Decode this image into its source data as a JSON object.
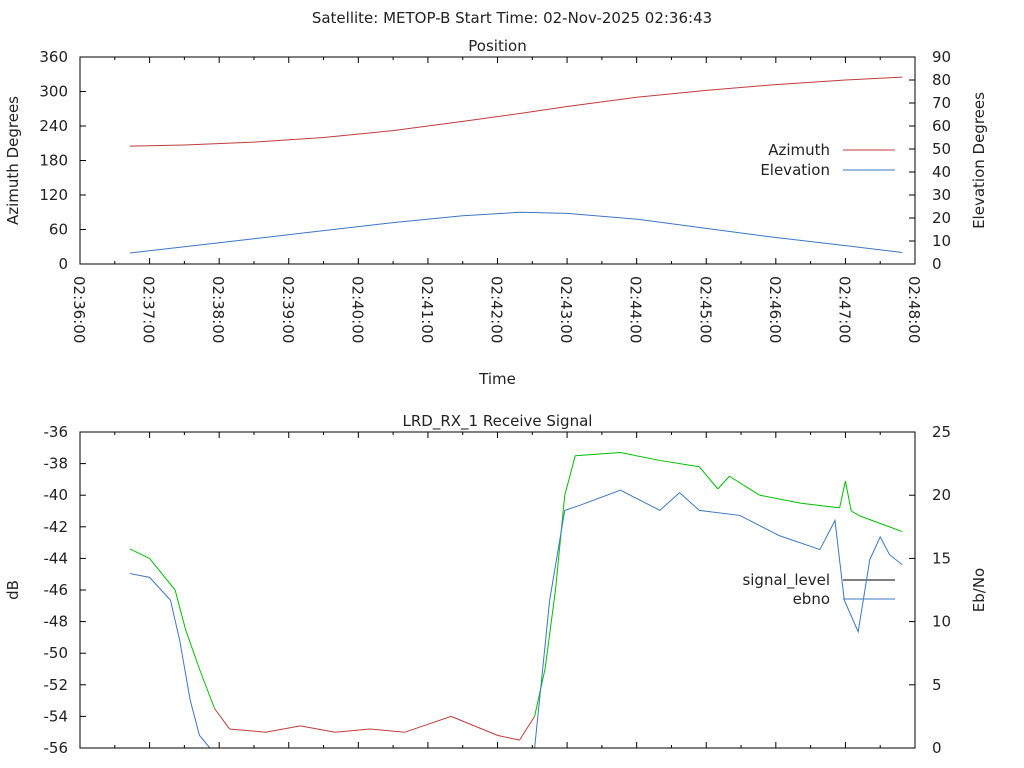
{
  "title": "Satellite: METOP-B    Start Time: 02-Nov-2025 02:36:43",
  "colors": {
    "azimuth": "#c03c3c",
    "elevation": "#3c78c0",
    "signal_good": "#00c000",
    "signal_bad": "#c03c3c",
    "ebno": "#3c78c0",
    "legend_signal": "#000000"
  },
  "chart_data": [
    {
      "type": "line",
      "title": "Position",
      "xlabel": "Time",
      "ylabel": "Azimuth Degrees",
      "y2label": "Elevation Degrees",
      "xlim": [
        "02:36:00",
        "02:48:00"
      ],
      "ylim": [
        0,
        360
      ],
      "y2lim": [
        0,
        90
      ],
      "xticks": [
        "02:36:00",
        "02:37:00",
        "02:38:00",
        "02:39:00",
        "02:40:00",
        "02:41:00",
        "02:42:00",
        "02:43:00",
        "02:44:00",
        "02:45:00",
        "02:46:00",
        "02:47:00",
        "02:48:00"
      ],
      "yticks": [
        "0",
        "60",
        "120",
        "180",
        "240",
        "300",
        "360"
      ],
      "y2ticks": [
        "0",
        "10",
        "20",
        "30",
        "40",
        "50",
        "60",
        "70",
        "80",
        "90"
      ],
      "legend": "right",
      "series": [
        {
          "name": "Azimuth",
          "axis": "y",
          "x": [
            "02:36:43",
            "02:37:30",
            "02:38:30",
            "02:39:30",
            "02:40:30",
            "02:41:30",
            "02:42:20",
            "02:43:00",
            "02:44:00",
            "02:45:00",
            "02:46:00",
            "02:47:00",
            "02:47:49"
          ],
          "y": [
            205,
            207,
            212,
            220,
            232,
            248,
            262,
            274,
            290,
            302,
            312,
            320,
            325
          ]
        },
        {
          "name": "Elevation",
          "axis": "y2",
          "x": [
            "02:36:43",
            "02:37:30",
            "02:38:30",
            "02:39:30",
            "02:40:30",
            "02:41:30",
            "02:42:20",
            "02:43:00",
            "02:44:00",
            "02:45:00",
            "02:46:00",
            "02:47:00",
            "02:47:49"
          ],
          "y": [
            4.8,
            7.5,
            11,
            14.5,
            18,
            21,
            22.5,
            22,
            19.5,
            15.5,
            11.5,
            8,
            5
          ]
        }
      ]
    },
    {
      "type": "line",
      "title": "LRD_RX_1 Receive Signal",
      "ylabel": "dB",
      "y2label": "Eb/No",
      "xlim": [
        "02:36:00",
        "02:48:00"
      ],
      "ylim": [
        -56,
        -36
      ],
      "y2lim": [
        0,
        25
      ],
      "yticks": [
        "-56",
        "-54",
        "-52",
        "-50",
        "-48",
        "-46",
        "-44",
        "-42",
        "-40",
        "-38",
        "-36"
      ],
      "y2ticks": [
        "0",
        "5",
        "10",
        "15",
        "20",
        "25"
      ],
      "legend": "right",
      "series": [
        {
          "name": "signal_level",
          "axis": "y",
          "x": [
            "02:36:43",
            "02:37:00",
            "02:37:22",
            "02:37:31",
            "02:37:43",
            "02:37:56",
            "02:38:09",
            "02:38:40",
            "02:39:10",
            "02:39:40",
            "02:40:10",
            "02:40:40",
            "02:41:00",
            "02:41:20",
            "02:41:40",
            "02:42:00",
            "02:42:19",
            "02:42:32",
            "02:42:41",
            "02:42:50",
            "02:42:58",
            "02:43:07",
            "02:43:46",
            "02:44:20",
            "02:44:54",
            "02:45:10",
            "02:45:20",
            "02:45:46",
            "02:46:21",
            "02:46:55",
            "02:47:00",
            "02:47:05",
            "02:47:12",
            "02:47:49"
          ],
          "y": [
            -43.4,
            -44,
            -46,
            -48.5,
            -51,
            -53.5,
            -54.8,
            -55,
            -54.6,
            -55,
            -54.8,
            -55,
            -54.5,
            -54,
            -54.6,
            -55.2,
            -55.5,
            -54,
            -51,
            -46,
            -40,
            -37.5,
            -37.3,
            -37.8,
            -38.2,
            -39.6,
            -38.8,
            -40,
            -40.5,
            -40.8,
            -39.1,
            -41,
            -41.3,
            -42.3
          ]
        },
        {
          "name": "ebno",
          "axis": "y2",
          "x": [
            "02:36:43",
            "02:37:00",
            "02:37:18",
            "02:37:26",
            "02:37:35",
            "02:37:43",
            "02:37:52",
            "02:42:32",
            "02:42:45",
            "02:42:58",
            "02:43:11",
            "02:43:46",
            "02:44:20",
            "02:44:37",
            "02:44:54",
            "02:45:29",
            "02:46:03",
            "02:46:38",
            "02:46:51",
            "02:46:59",
            "02:47:11",
            "02:47:21",
            "02:47:30",
            "02:47:38",
            "02:47:49"
          ],
          "y": [
            13.8,
            13.5,
            11.7,
            8.5,
            3.8,
            1,
            0,
            0,
            11.7,
            18.8,
            19.2,
            20.4,
            18.8,
            20.2,
            18.8,
            18.4,
            16.8,
            15.7,
            18,
            11.7,
            9.2,
            14.9,
            16.7,
            15.3,
            14.5
          ]
        }
      ]
    }
  ]
}
